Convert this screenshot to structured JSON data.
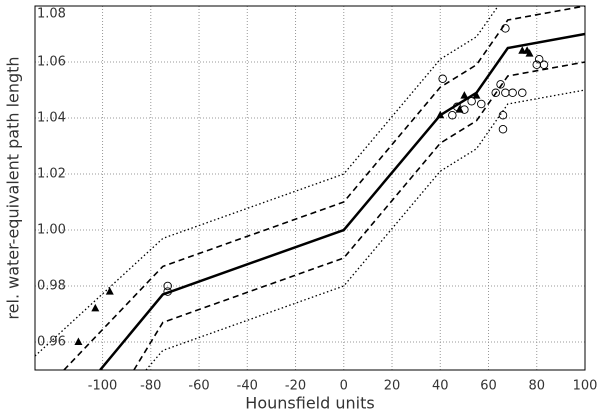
{
  "chart_data": {
    "type": "line",
    "xlabel": "Hounsfield units",
    "ylabel": "rel. water-equivalent path length",
    "xlim": [
      -128,
      100
    ],
    "ylim": [
      0.95,
      1.08
    ],
    "xticks": [
      -100,
      -80,
      -60,
      -40,
      -20,
      0,
      20,
      40,
      60,
      80,
      100
    ],
    "yticks": [
      0.96,
      0.98,
      {
        "value": 1,
        "label": "1.00"
      },
      1.02,
      1.04,
      1.06,
      1.08
    ],
    "grid": true,
    "series": [
      {
        "style": "solid",
        "color": "#000000",
        "x": [
          -101,
          -75,
          0,
          40,
          55,
          68,
          100
        ],
        "values": [
          0.95,
          0.977,
          1.0,
          1.041,
          1.049,
          1.065,
          1.07
        ]
      },
      {
        "style": "dashed",
        "color": "#000000",
        "x": [
          -116,
          -75,
          0,
          40,
          55,
          68,
          100
        ],
        "values": [
          0.95,
          0.987,
          1.01,
          1.051,
          1.059,
          1.075,
          1.08
        ]
      },
      {
        "style": "dashed",
        "color": "#000000",
        "x": [
          -87,
          -75,
          0,
          40,
          55,
          68,
          100
        ],
        "values": [
          0.95,
          0.967,
          0.99,
          1.031,
          1.039,
          1.055,
          1.06
        ]
      },
      {
        "style": "dotted",
        "color": "#000000",
        "x": [
          -128,
          -75,
          0,
          40,
          55,
          64
        ],
        "values": [
          0.955,
          0.997,
          1.02,
          1.061,
          1.069,
          1.08
        ]
      },
      {
        "style": "dotted",
        "color": "#000000",
        "x": [
          -82,
          -75,
          0,
          40,
          55,
          68,
          100
        ],
        "values": [
          0.95,
          0.957,
          0.98,
          1.021,
          1.029,
          1.045,
          1.05
        ]
      },
      {
        "style": "triangle",
        "color": "#000000",
        "x": [
          -110,
          -103,
          -97,
          40,
          48,
          50,
          55,
          74,
          76,
          77
        ],
        "values": [
          0.96,
          0.972,
          0.978,
          1.041,
          1.043,
          1.048,
          1.048,
          1.064,
          1.064,
          1.063
        ]
      },
      {
        "style": "circle",
        "color": "#000000",
        "x": [
          -73,
          -73,
          41,
          45,
          47,
          50,
          53,
          57,
          63,
          65,
          66,
          66,
          67,
          67,
          70,
          74,
          80,
          81,
          83
        ],
        "values": [
          0.98,
          0.978,
          1.054,
          1.041,
          1.044,
          1.043,
          1.046,
          1.045,
          1.049,
          1.052,
          1.041,
          1.036,
          1.049,
          1.072,
          1.049,
          1.049,
          1.059,
          1.061,
          1.059
        ]
      }
    ]
  }
}
